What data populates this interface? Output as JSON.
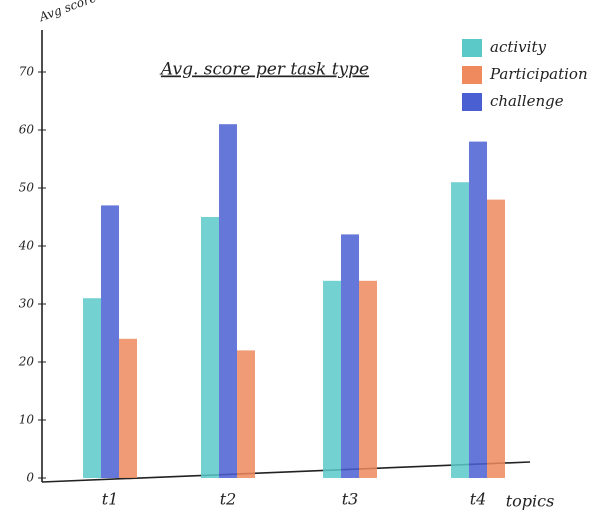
{
  "chart_data": {
    "type": "bar",
    "title": "Avg. score per task type",
    "y_label": "Avg score",
    "x_label": "topics",
    "categories": [
      "t1",
      "t2",
      "t3",
      "t4"
    ],
    "series": [
      {
        "name": "activity",
        "color": "#5cc9c9",
        "values": [
          31,
          45,
          34,
          51
        ]
      },
      {
        "name": "Participation",
        "color": "#ef8a5e",
        "values": [
          24,
          22,
          34,
          48
        ]
      },
      {
        "name": "challenge",
        "color": "#4a5fd2",
        "values": [
          47,
          61,
          42,
          58
        ]
      }
    ],
    "ylim": [
      0,
      70
    ],
    "yticks": [
      0,
      10,
      20,
      30,
      40,
      50,
      60,
      70
    ],
    "grid": false,
    "legend": "top-right"
  }
}
